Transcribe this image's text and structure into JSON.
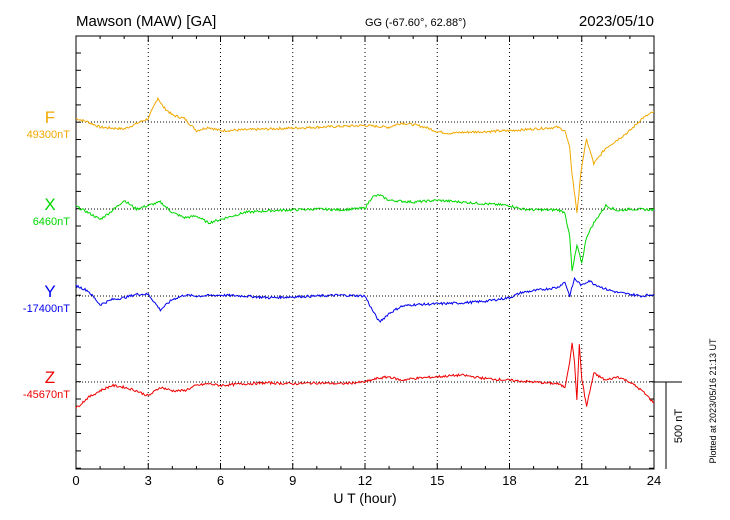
{
  "header": {
    "station": "Mawson (MAW)  [GA]",
    "coords": "GG (-67.60°,  62.88°)",
    "date": "2023/05/10"
  },
  "footer": {
    "plotted": "Plotted at 2023/05/16 21:13 UT"
  },
  "chart_data": {
    "type": "line",
    "xlabel": "U T (hour)",
    "xlim": [
      0,
      24
    ],
    "xticks": [
      "0",
      "3",
      "6",
      "9",
      "12",
      "15",
      "18",
      "21",
      "24"
    ],
    "scale_bar": {
      "label": "500 nT",
      "value_nT": 500
    },
    "series": [
      {
        "name": "F",
        "baseline_label": "49300nT",
        "baseline": 49300,
        "color": "#f0a800",
        "points": [
          [
            0,
            49320
          ],
          [
            0.5,
            49300
          ],
          [
            1,
            49270
          ],
          [
            1.5,
            49265
          ],
          [
            2,
            49260
          ],
          [
            2.5,
            49290
          ],
          [
            3,
            49320
          ],
          [
            3.2,
            49380
          ],
          [
            3.4,
            49440
          ],
          [
            3.6,
            49390
          ],
          [
            4,
            49340
          ],
          [
            4.5,
            49320
          ],
          [
            5,
            49250
          ],
          [
            5.5,
            49270
          ],
          [
            6,
            49250
          ],
          [
            7,
            49255
          ],
          [
            8,
            49260
          ],
          [
            9,
            49265
          ],
          [
            10,
            49270
          ],
          [
            11,
            49275
          ],
          [
            12,
            49280
          ],
          [
            12.5,
            49275
          ],
          [
            13,
            49270
          ],
          [
            13.5,
            49295
          ],
          [
            14,
            49285
          ],
          [
            14.5,
            49270
          ],
          [
            15,
            49245
          ],
          [
            15.5,
            49235
          ],
          [
            16,
            49240
          ],
          [
            17,
            49245
          ],
          [
            18,
            49250
          ],
          [
            19,
            49260
          ],
          [
            20,
            49270
          ],
          [
            20.3,
            49250
          ],
          [
            20.5,
            49150
          ],
          [
            20.6,
            49000
          ],
          [
            20.8,
            48780
          ],
          [
            21,
            49050
          ],
          [
            21.2,
            49200
          ],
          [
            21.5,
            49060
          ],
          [
            22,
            49150
          ],
          [
            22.5,
            49200
          ],
          [
            23,
            49250
          ],
          [
            23.5,
            49320
          ],
          [
            24,
            49360
          ]
        ]
      },
      {
        "name": "X",
        "baseline_label": "6460nT",
        "baseline": 6460,
        "color": "#00d800",
        "points": [
          [
            0,
            6475
          ],
          [
            0.5,
            6440
          ],
          [
            1,
            6400
          ],
          [
            1.5,
            6450
          ],
          [
            2,
            6510
          ],
          [
            2.5,
            6460
          ],
          [
            3,
            6480
          ],
          [
            3.5,
            6500
          ],
          [
            4,
            6440
          ],
          [
            4.5,
            6410
          ],
          [
            5,
            6420
          ],
          [
            5.5,
            6380
          ],
          [
            6,
            6400
          ],
          [
            7,
            6440
          ],
          [
            8,
            6450
          ],
          [
            9,
            6455
          ],
          [
            10,
            6460
          ],
          [
            11,
            6455
          ],
          [
            12,
            6465
          ],
          [
            12.3,
            6530
          ],
          [
            12.6,
            6540
          ],
          [
            13,
            6510
          ],
          [
            14,
            6500
          ],
          [
            15,
            6510
          ],
          [
            16,
            6500
          ],
          [
            17,
            6490
          ],
          [
            18,
            6480
          ],
          [
            18.5,
            6460
          ],
          [
            19,
            6455
          ],
          [
            20,
            6455
          ],
          [
            20.3,
            6440
          ],
          [
            20.5,
            6300
          ],
          [
            20.6,
            6100
          ],
          [
            20.8,
            6250
          ],
          [
            21,
            6150
          ],
          [
            21.2,
            6300
          ],
          [
            21.5,
            6380
          ],
          [
            22,
            6480
          ],
          [
            22.5,
            6450
          ],
          [
            23,
            6460
          ],
          [
            24,
            6455
          ]
        ]
      },
      {
        "name": "Y",
        "baseline_label": "-17400nT",
        "baseline": -17400,
        "color": "#0000ee",
        "points": [
          [
            0,
            -17340
          ],
          [
            0.5,
            -17370
          ],
          [
            1,
            -17450
          ],
          [
            1.5,
            -17420
          ],
          [
            2,
            -17410
          ],
          [
            2.5,
            -17390
          ],
          [
            3,
            -17390
          ],
          [
            3.5,
            -17480
          ],
          [
            4,
            -17420
          ],
          [
            4.5,
            -17395
          ],
          [
            5,
            -17400
          ],
          [
            6,
            -17395
          ],
          [
            7,
            -17400
          ],
          [
            8,
            -17410
          ],
          [
            9,
            -17405
          ],
          [
            10,
            -17400
          ],
          [
            11,
            -17395
          ],
          [
            12,
            -17400
          ],
          [
            12.3,
            -17480
          ],
          [
            12.6,
            -17550
          ],
          [
            13,
            -17500
          ],
          [
            13.5,
            -17460
          ],
          [
            14,
            -17450
          ],
          [
            15,
            -17445
          ],
          [
            16,
            -17440
          ],
          [
            17,
            -17430
          ],
          [
            17.5,
            -17420
          ],
          [
            18,
            -17410
          ],
          [
            18.5,
            -17380
          ],
          [
            19,
            -17370
          ],
          [
            20,
            -17350
          ],
          [
            20.3,
            -17320
          ],
          [
            20.5,
            -17400
          ],
          [
            20.7,
            -17300
          ],
          [
            21,
            -17340
          ],
          [
            21.3,
            -17310
          ],
          [
            21.5,
            -17330
          ],
          [
            22,
            -17360
          ],
          [
            22.5,
            -17380
          ],
          [
            23,
            -17390
          ],
          [
            23.5,
            -17400
          ],
          [
            24,
            -17390
          ]
        ]
      },
      {
        "name": "Z",
        "baseline_label": "-45670nT",
        "baseline": -45670,
        "color": "#ee0000",
        "points": [
          [
            0,
            -45820
          ],
          [
            0.5,
            -45760
          ],
          [
            1,
            -45720
          ],
          [
            1.5,
            -45690
          ],
          [
            2,
            -45700
          ],
          [
            2.5,
            -45720
          ],
          [
            3,
            -45750
          ],
          [
            3.5,
            -45700
          ],
          [
            4,
            -45720
          ],
          [
            4.5,
            -45720
          ],
          [
            5,
            -45690
          ],
          [
            5.5,
            -45680
          ],
          [
            6,
            -45690
          ],
          [
            7,
            -45680
          ],
          [
            8,
            -45675
          ],
          [
            9,
            -45680
          ],
          [
            10,
            -45675
          ],
          [
            11,
            -45680
          ],
          [
            12,
            -45670
          ],
          [
            12.5,
            -45650
          ],
          [
            13,
            -45640
          ],
          [
            13.5,
            -45660
          ],
          [
            14,
            -45650
          ],
          [
            15,
            -45640
          ],
          [
            16,
            -45630
          ],
          [
            17,
            -45650
          ],
          [
            18,
            -45660
          ],
          [
            19,
            -45670
          ],
          [
            20,
            -45680
          ],
          [
            20.3,
            -45700
          ],
          [
            20.5,
            -45550
          ],
          [
            20.6,
            -45450
          ],
          [
            20.7,
            -45550
          ],
          [
            20.8,
            -45780
          ],
          [
            20.9,
            -45450
          ],
          [
            21,
            -45650
          ],
          [
            21.2,
            -45810
          ],
          [
            21.5,
            -45620
          ],
          [
            22,
            -45660
          ],
          [
            22.5,
            -45640
          ],
          [
            23,
            -45670
          ],
          [
            23.5,
            -45720
          ],
          [
            24,
            -45790
          ]
        ]
      }
    ]
  }
}
